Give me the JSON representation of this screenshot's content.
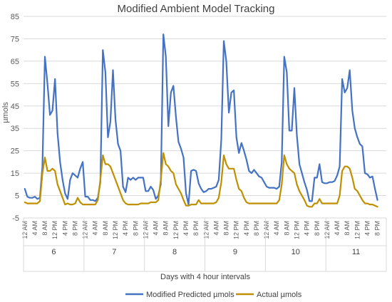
{
  "chart_data": {
    "type": "line",
    "title": "Modified Ambient Model Tracking",
    "xlabel": "Days with 4 hour intervals",
    "ylabel": "µmols",
    "ylim": [
      -5,
      85
    ],
    "yticks": [
      -5,
      5,
      15,
      25,
      35,
      45,
      55,
      65,
      75,
      85
    ],
    "grid": "horizontal",
    "legend_position": "bottom",
    "hour_labels": [
      "12 AM",
      "4 AM",
      "8 AM",
      "12 PM",
      "4 PM",
      "8 PM"
    ],
    "days": [
      "6",
      "7",
      "8",
      "9",
      "10",
      "11"
    ],
    "points_per_day": 24,
    "series": [
      {
        "name": "Modified Predicted µmols",
        "color": "#4472C4",
        "values": [
          8,
          4.5,
          4,
          4,
          4.5,
          3.5,
          4,
          18,
          67,
          55,
          41,
          43,
          57,
          33,
          20,
          12,
          6,
          3.5,
          12,
          15,
          14,
          13,
          17,
          20,
          4.5,
          4.5,
          3,
          3,
          2.5,
          4,
          11,
          70,
          60,
          31,
          38,
          61,
          39,
          28,
          25,
          9,
          6.5,
          13,
          12,
          13,
          12,
          13,
          13,
          13,
          7,
          7,
          9,
          7.5,
          3.5,
          5,
          10,
          77,
          67,
          36,
          51,
          54,
          40,
          29,
          26,
          22,
          6,
          1,
          16,
          16.5,
          16,
          10.5,
          8,
          6.5,
          7,
          8,
          8,
          8.5,
          9,
          12,
          30,
          74,
          65,
          42,
          51,
          52,
          31,
          24,
          28.5,
          25,
          21,
          16,
          15,
          16.5,
          15,
          13.5,
          13,
          11,
          9,
          8.5,
          8.5,
          8.5,
          8,
          9,
          20,
          67,
          60,
          34,
          34,
          53,
          32,
          19,
          15,
          11,
          7.5,
          2.5,
          2.5,
          13,
          13,
          19,
          11,
          10.5,
          10.5,
          11,
          11,
          11.5,
          14,
          18,
          57,
          51,
          53,
          61,
          43,
          35,
          31,
          28,
          27,
          15,
          14.5,
          13,
          13.5,
          8,
          3
        ]
      },
      {
        "name": "Actual µmols",
        "color": "#BF9000",
        "values": [
          2,
          1.5,
          1.5,
          1.5,
          1.5,
          1.5,
          2.5,
          15,
          22,
          16,
          16,
          17,
          16,
          10,
          7,
          4,
          1,
          1.5,
          1,
          1,
          1.5,
          4,
          2,
          1,
          1,
          1,
          1,
          1,
          1,
          3,
          12,
          23,
          19,
          19,
          18,
          15,
          12,
          9,
          6,
          3,
          1.5,
          1,
          1,
          1,
          1,
          1,
          1.5,
          1.5,
          1.5,
          1.5,
          2,
          2,
          2,
          3,
          12,
          24,
          19,
          18,
          16,
          15,
          10,
          8,
          6,
          3,
          0.5,
          0.5,
          1,
          1,
          1,
          3,
          1.5,
          1.5,
          1.5,
          1.5,
          1.5,
          1.5,
          2,
          4,
          11,
          23,
          19,
          17,
          17,
          17,
          12,
          8,
          7,
          4,
          2,
          1.5,
          1.5,
          1.5,
          1.5,
          1.5,
          1.5,
          1.5,
          1.5,
          1.5,
          1.5,
          1.5,
          1.5,
          3,
          10,
          23,
          19,
          17,
          16,
          15,
          10,
          7,
          5,
          3,
          0.5,
          0,
          0,
          1.5,
          1.5,
          3.5,
          1.5,
          1.5,
          1.5,
          1.5,
          1.5,
          1.5,
          1.5,
          5,
          16,
          18,
          18,
          17,
          13,
          8,
          7,
          5,
          3,
          1.5,
          1.5,
          1,
          1,
          0.5,
          0
        ]
      }
    ]
  }
}
